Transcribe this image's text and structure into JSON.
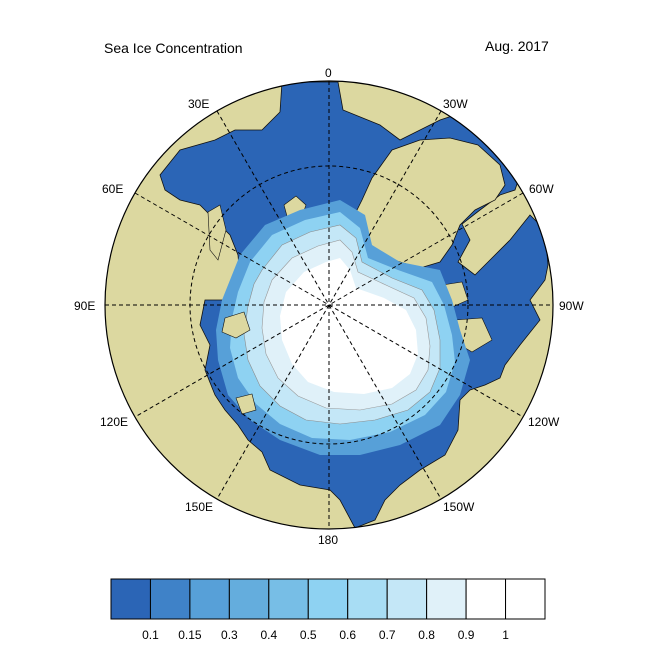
{
  "title": "Sea Ice Concentration",
  "date": "Aug. 2017",
  "longitude_labels": [
    "0",
    "30W",
    "60W",
    "90W",
    "120W",
    "150W",
    "180",
    "150E",
    "120E",
    "90E",
    "60E",
    "30E"
  ],
  "colorbar": {
    "tick_labels": [
      "0.1",
      "0.15",
      "0.3",
      "0.4",
      "0.5",
      "0.6",
      "0.7",
      "0.8",
      "0.9",
      "1"
    ],
    "colors": [
      "#2b65b6",
      "#3f82c8",
      "#57a0d8",
      "#64addd",
      "#77bee6",
      "#8ed2f2",
      "#a8ddf4",
      "#c4e7f7",
      "#e0f1f9",
      "#ffffff",
      "#ffffff"
    ]
  },
  "colors": {
    "land": "#dcd8a0",
    "open_water": "#2b65b6",
    "pack_ice": "#ffffff",
    "grid": "#000000"
  }
}
